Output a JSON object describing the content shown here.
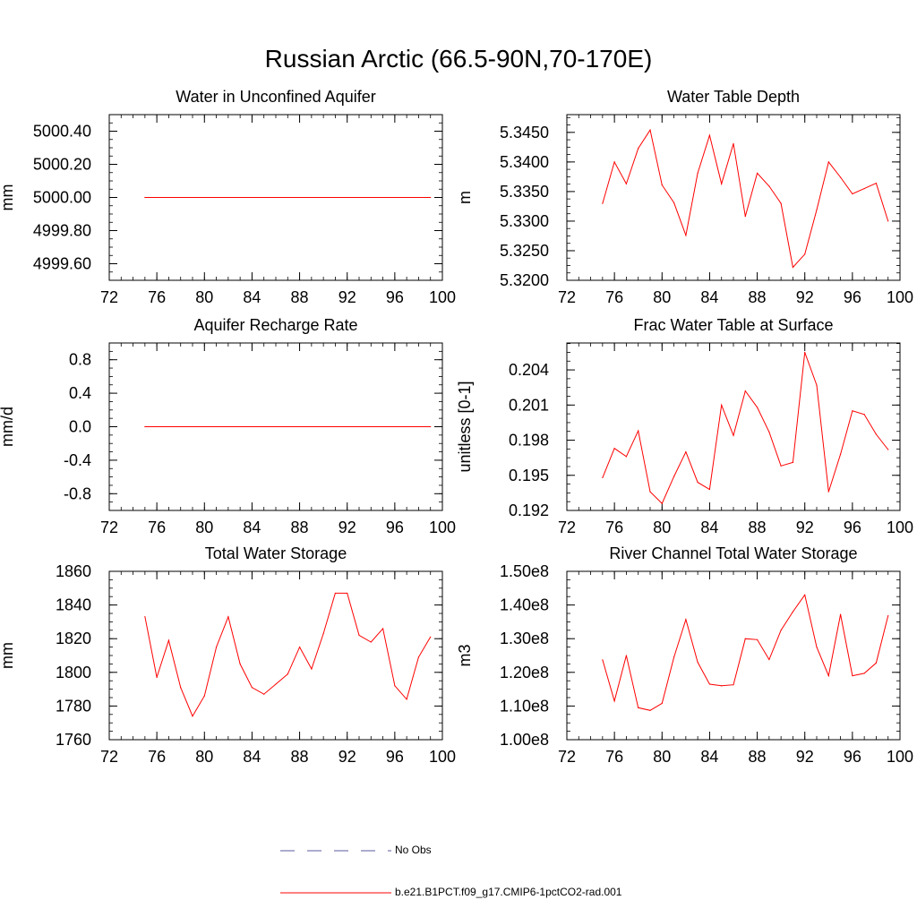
{
  "title": "Russian Arctic (66.5-90N,70-170E)",
  "legend": [
    {
      "label": "No Obs",
      "color": "#5a5aa0",
      "dash": "dashed"
    },
    {
      "label": "b.e21.B1PCT.f09_g17.CMIP6-1pctCO2-rad.001",
      "color": "#ff0000",
      "dash": "solid"
    }
  ],
  "chart_data": [
    {
      "type": "line",
      "title": "Water in Unconfined Aquifer",
      "ylabel": "mm",
      "xlim": [
        72,
        100
      ],
      "ylim": [
        4999.5,
        5000.5
      ],
      "xticks": [
        72,
        76,
        80,
        84,
        88,
        92,
        96,
        100
      ],
      "yticks": [
        4999.6,
        4999.8,
        5000.0,
        5000.2,
        5000.4
      ],
      "ytick_labels": [
        "4999.60",
        "4999.80",
        "5000.00",
        "5000.20",
        "5000.40"
      ],
      "x": [
        75,
        99
      ],
      "series": [
        {
          "values": [
            5000.0,
            5000.0
          ],
          "color": "#ff0000"
        }
      ]
    },
    {
      "type": "line",
      "title": "Water Table Depth",
      "ylabel": "m",
      "xlim": [
        72,
        100
      ],
      "ylim": [
        5.32,
        5.348
      ],
      "xticks": [
        72,
        76,
        80,
        84,
        88,
        92,
        96,
        100
      ],
      "yticks": [
        5.32,
        5.325,
        5.33,
        5.335,
        5.34,
        5.345
      ],
      "ytick_labels": [
        "5.3200",
        "5.3250",
        "5.3300",
        "5.3350",
        "5.3400",
        "5.3450"
      ],
      "x": [
        75,
        76,
        77,
        78,
        79,
        80,
        81,
        82,
        83,
        84,
        85,
        86,
        87,
        88,
        89,
        90,
        91,
        92,
        93,
        94,
        95,
        96,
        97,
        98,
        99
      ],
      "series": [
        {
          "values": [
            5.333,
            5.34,
            5.3363,
            5.3423,
            5.3454,
            5.3361,
            5.3331,
            5.3276,
            5.3381,
            5.3445,
            5.3363,
            5.3431,
            5.3308,
            5.3381,
            5.3359,
            5.333,
            5.3222,
            5.3244,
            5.3319,
            5.34,
            5.3374,
            5.3346,
            5.3355,
            5.3364,
            5.33
          ],
          "color": "#ff0000"
        }
      ]
    },
    {
      "type": "line",
      "title": "Aquifer Recharge Rate",
      "ylabel": "mm/d",
      "xlim": [
        72,
        100
      ],
      "ylim": [
        -1.0,
        1.0
      ],
      "xticks": [
        72,
        76,
        80,
        84,
        88,
        92,
        96,
        100
      ],
      "yticks": [
        -0.8,
        -0.4,
        0.0,
        0.4,
        0.8
      ],
      "ytick_labels": [
        "-0.8",
        "-0.4",
        "0.0",
        "0.4",
        "0.8"
      ],
      "x": [
        75,
        99
      ],
      "series": [
        {
          "values": [
            0.0,
            0.0
          ],
          "color": "#ff0000"
        }
      ]
    },
    {
      "type": "line",
      "title": "Frac Water Table at Surface",
      "ylabel": "unitless [0-1]",
      "xlim": [
        72,
        100
      ],
      "ylim": [
        0.192,
        0.2063
      ],
      "xticks": [
        72,
        76,
        80,
        84,
        88,
        92,
        96,
        100
      ],
      "yticks": [
        0.192,
        0.195,
        0.198,
        0.201,
        0.204
      ],
      "ytick_labels": [
        "0.192",
        "0.195",
        "0.198",
        "0.201",
        "0.204"
      ],
      "x": [
        75,
        76,
        77,
        78,
        79,
        80,
        81,
        82,
        83,
        84,
        85,
        86,
        87,
        88,
        89,
        90,
        91,
        92,
        93,
        94,
        95,
        96,
        97,
        98,
        99
      ],
      "series": [
        {
          "values": [
            0.1948,
            0.1973,
            0.1966,
            0.1988,
            0.1936,
            0.1926,
            0.1949,
            0.197,
            0.1944,
            0.1938,
            0.201,
            0.1984,
            0.2022,
            0.2008,
            0.1987,
            0.1958,
            0.1961,
            0.2055,
            0.2027,
            0.1936,
            0.1968,
            0.2005,
            0.2002,
            0.1985,
            0.1972
          ],
          "color": "#ff0000"
        }
      ]
    },
    {
      "type": "line",
      "title": "Total Water Storage",
      "ylabel": "mm",
      "xlim": [
        72,
        100
      ],
      "ylim": [
        1760,
        1860
      ],
      "xticks": [
        72,
        76,
        80,
        84,
        88,
        92,
        96,
        100
      ],
      "yticks": [
        1760,
        1780,
        1800,
        1820,
        1840,
        1860
      ],
      "ytick_labels": [
        "1760",
        "1780",
        "1800",
        "1820",
        "1840",
        "1860"
      ],
      "x": [
        75,
        76,
        77,
        78,
        79,
        80,
        81,
        82,
        83,
        84,
        85,
        86,
        87,
        88,
        89,
        90,
        91,
        92,
        93,
        94,
        95,
        96,
        97,
        98,
        99
      ],
      "series": [
        {
          "values": [
            1833,
            1797,
            1819,
            1791,
            1774,
            1786,
            1815,
            1833,
            1805,
            1791,
            1787,
            1793,
            1799,
            1815,
            1802,
            1823,
            1847,
            1847,
            1822,
            1818,
            1826,
            1792,
            1784,
            1809,
            1821
          ],
          "color": "#ff0000"
        }
      ]
    },
    {
      "type": "line",
      "title": "River Channel Total Water Storage",
      "ylabel": "m3",
      "xlim": [
        72,
        100
      ],
      "ylim": [
        100000000.0,
        150000000.0
      ],
      "xticks": [
        72,
        76,
        80,
        84,
        88,
        92,
        96,
        100
      ],
      "yticks": [
        100000000.0,
        110000000.0,
        120000000.0,
        130000000.0,
        140000000.0,
        150000000.0
      ],
      "ytick_labels": [
        "1.00e8",
        "1.10e8",
        "1.20e8",
        "1.30e8",
        "1.40e8",
        "1.50e8"
      ],
      "x": [
        75,
        76,
        77,
        78,
        79,
        80,
        81,
        82,
        83,
        84,
        85,
        86,
        87,
        88,
        89,
        90,
        91,
        92,
        93,
        94,
        95,
        96,
        97,
        98,
        99
      ],
      "series": [
        {
          "values": [
            123700000.0,
            111500000.0,
            125000000.0,
            109500000.0,
            108700000.0,
            110800000.0,
            124500000.0,
            135700000.0,
            123000000.0,
            116500000.0,
            116000000.0,
            116300000.0,
            130000000.0,
            129700000.0,
            123800000.0,
            132500000.0,
            138000000.0,
            143000000.0,
            127500000.0,
            119000000.0,
            137200000.0,
            119000000.0,
            119700000.0,
            122800000.0,
            136800000.0
          ],
          "color": "#ff0000"
        }
      ]
    }
  ]
}
